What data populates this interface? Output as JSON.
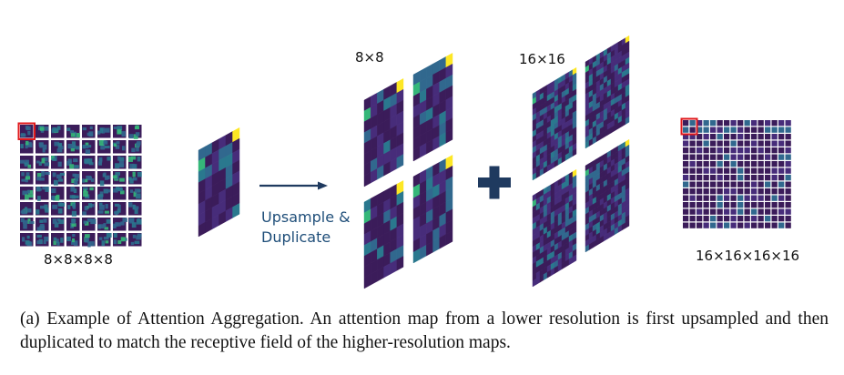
{
  "figure": {
    "label_small_grid": "8×8×8×8",
    "label_mid_8": "8×8",
    "label_mid_16": "16×16",
    "label_large_grid": "16×16×16×16",
    "operation": {
      "line1": "Upsample &",
      "line2": "Duplicate"
    },
    "plus_symbol": "+",
    "colors": {
      "dark_purple": "#3b1c5a",
      "mid_purple": "#472c7a",
      "teal": "#2a788e",
      "blue": "#31688e",
      "green": "#35b779",
      "yellow": "#fde725",
      "arrow": "#1f3a5f",
      "plus": "#1f3a5f",
      "highlight_box": "#e0191c"
    }
  },
  "caption": {
    "text": "(a) Example of Attention Aggregation.  An attention map from a lower resolution is first upsampled and then duplicated to match the receptive field of the higher-resolution maps."
  }
}
